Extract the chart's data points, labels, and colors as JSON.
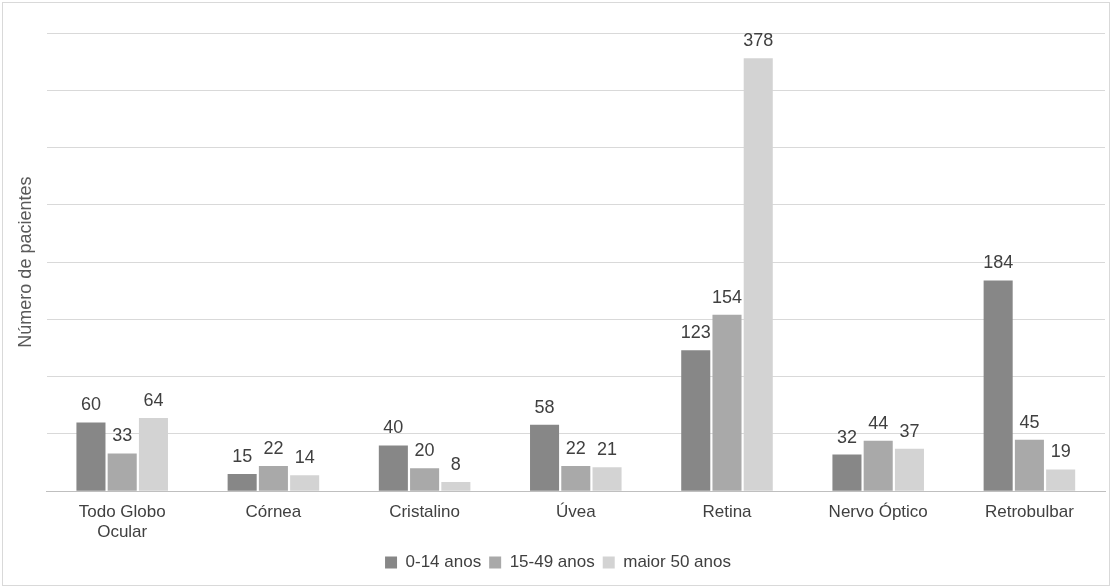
{
  "chart_data": {
    "type": "bar",
    "ylabel": "Número de pacientes",
    "categories": [
      "Todo Globo Ocular",
      "Córnea",
      "Cristalino",
      "Úvea",
      "Retina",
      "Nervo Óptico",
      "Retrobulbar"
    ],
    "series": [
      {
        "name": "0-14 anos",
        "color": "#878787",
        "values": [
          60,
          15,
          40,
          58,
          123,
          32,
          184
        ]
      },
      {
        "name": "15-49 anos",
        "color": "#a9a9a9",
        "values": [
          33,
          22,
          20,
          22,
          154,
          44,
          45
        ]
      },
      {
        "name": "maior 50 anos",
        "color": "#d3d3d3",
        "values": [
          64,
          14,
          8,
          21,
          378,
          37,
          19
        ]
      }
    ],
    "ylim": [
      0,
      400
    ],
    "yticks": [
      {
        "value": 0,
        "label": null
      },
      {
        "value": 50,
        "label": null
      },
      {
        "value": 100,
        "label": null
      },
      {
        "value": 150,
        "label": null
      },
      {
        "value": 200,
        "label": null
      },
      {
        "value": 250,
        "label": null
      },
      {
        "value": 300,
        "label": null
      },
      {
        "value": 350,
        "label": null
      },
      {
        "value": 400,
        "label": null
      }
    ],
    "grid": "y",
    "legend": "bottom",
    "data_labels": true
  }
}
